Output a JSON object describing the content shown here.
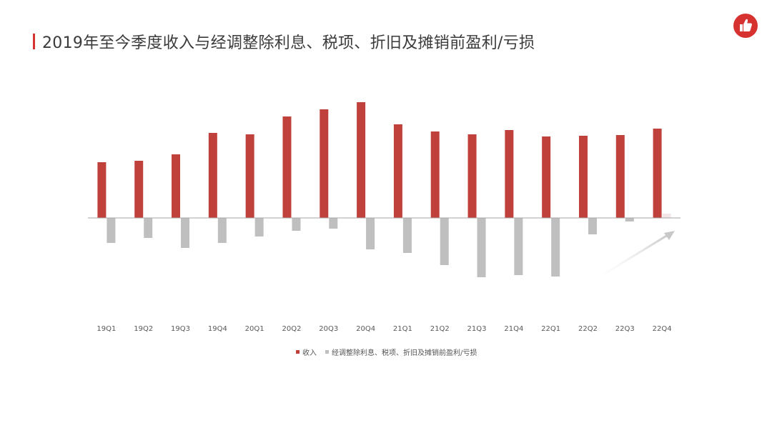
{
  "page": {
    "title": "2019年至今季度收入与经调整除利息、税项、折旧及摊销前盈利/亏损"
  },
  "logo": {
    "icon": "thumbs-up-icon",
    "color": "#d6322f"
  },
  "chart_data": {
    "type": "bar",
    "categories": [
      "19Q1",
      "19Q2",
      "19Q3",
      "19Q4",
      "20Q1",
      "20Q2",
      "20Q3",
      "20Q4",
      "21Q1",
      "21Q2",
      "21Q3",
      "21Q4",
      "22Q1",
      "22Q2",
      "22Q3",
      "22Q4"
    ],
    "series": [
      {
        "name": "收入",
        "color": "#c0413b",
        "values": [
          78,
          80,
          89,
          119,
          117,
          142,
          152,
          162,
          131,
          121,
          117,
          123,
          114,
          115,
          116,
          125
        ]
      },
      {
        "name": "经调整除利息、税项、折旧及摊销前盈利/亏损",
        "color": "#bfbfbf",
        "values": [
          -35,
          -28,
          -42,
          -35,
          -26,
          -18,
          -15,
          -44,
          -49,
          -66,
          -83,
          -80,
          -82,
          -23,
          -5,
          6
        ]
      }
    ],
    "ylim": [
      -95,
      170
    ],
    "grid": false,
    "legend_position": "bottom"
  }
}
